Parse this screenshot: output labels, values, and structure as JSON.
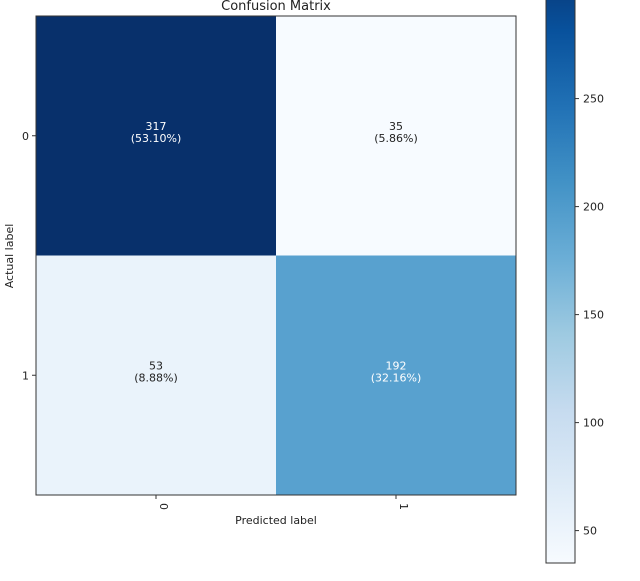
{
  "chart_data": {
    "type": "heatmap",
    "title": "Confusion Matrix",
    "xlabel": "Predicted label",
    "ylabel": "Actual label",
    "x_categories": [
      "0",
      "1"
    ],
    "y_categories": [
      "0",
      "1"
    ],
    "values": [
      [
        317,
        35
      ],
      [
        53,
        192
      ]
    ],
    "cell_labels": [
      [
        "317\n(53.10%)",
        "35\n(5.86%)"
      ],
      [
        "53\n(8.88%)",
        "192\n(32.16%)"
      ]
    ],
    "colormap": "Blues",
    "colormap_stops": [
      "#f7fbff",
      "#deebf7",
      "#c6dbef",
      "#9ecae1",
      "#6baed6",
      "#4292c6",
      "#2171b5",
      "#08519c",
      "#08306b"
    ],
    "vrange": [
      35,
      317
    ],
    "colorbar": {
      "ticks": [
        50,
        100,
        150,
        200,
        250
      ],
      "placement": "right"
    },
    "grid": false
  }
}
